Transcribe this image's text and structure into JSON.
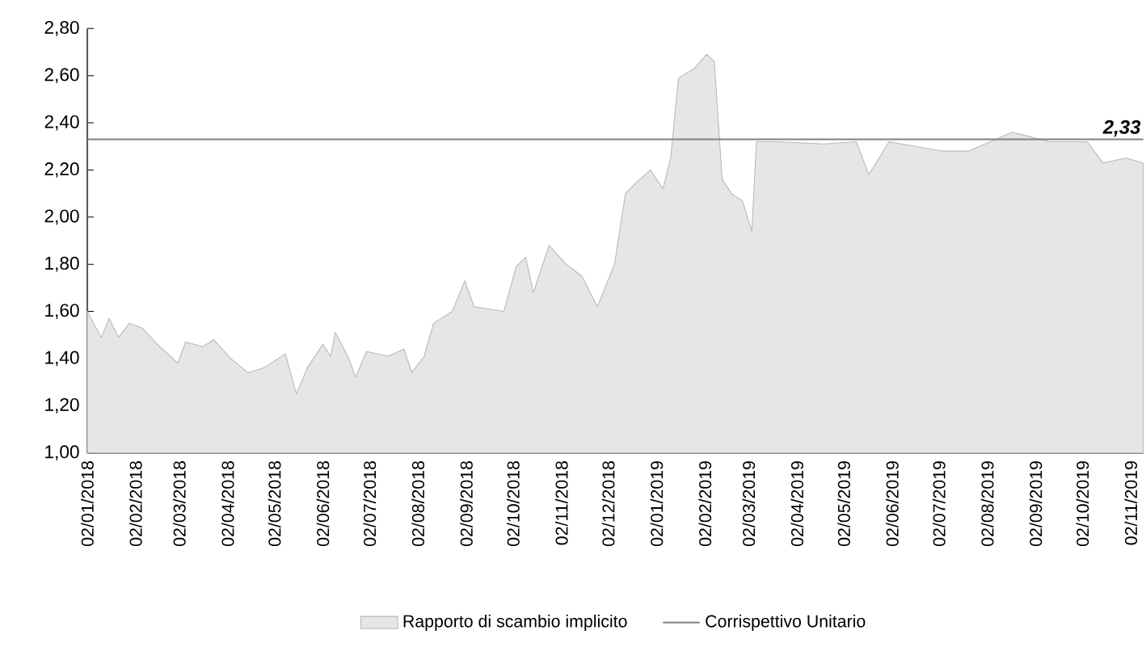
{
  "chart_data": {
    "type": "area",
    "legend": "bottom",
    "xlim": [
      "2018-01-02",
      "2019-11-10"
    ],
    "xticks": [
      {
        "value": "2018-01-02",
        "label": "02/01/2018"
      },
      {
        "value": "2018-02-02",
        "label": "02/02/2018"
      },
      {
        "value": "2018-03-02",
        "label": "02/03/2018"
      },
      {
        "value": "2018-04-02",
        "label": "02/04/2018"
      },
      {
        "value": "2018-05-02",
        "label": "02/05/2018"
      },
      {
        "value": "2018-06-02",
        "label": "02/06/2018"
      },
      {
        "value": "2018-07-02",
        "label": "02/07/2018"
      },
      {
        "value": "2018-08-02",
        "label": "02/08/2018"
      },
      {
        "value": "2018-09-02",
        "label": "02/09/2018"
      },
      {
        "value": "2018-10-02",
        "label": "02/10/2018"
      },
      {
        "value": "2018-11-02",
        "label": "02/11/2018"
      },
      {
        "value": "2018-12-02",
        "label": "02/12/2018"
      },
      {
        "value": "2019-01-02",
        "label": "02/01/2019"
      },
      {
        "value": "2019-02-02",
        "label": "02/02/2019"
      },
      {
        "value": "2019-03-02",
        "label": "02/03/2019"
      },
      {
        "value": "2019-04-02",
        "label": "02/04/2019"
      },
      {
        "value": "2019-05-02",
        "label": "02/05/2019"
      },
      {
        "value": "2019-06-02",
        "label": "02/06/2019"
      },
      {
        "value": "2019-07-02",
        "label": "02/07/2019"
      },
      {
        "value": "2019-08-02",
        "label": "02/08/2019"
      },
      {
        "value": "2019-09-02",
        "label": "02/09/2019"
      },
      {
        "value": "2019-10-02",
        "label": "02/10/2019"
      },
      {
        "value": "2019-11-02",
        "label": "02/11/2019"
      }
    ],
    "ylim": [
      1.0,
      2.8
    ],
    "yticks": [
      {
        "value": 1.0,
        "label": "1,00"
      },
      {
        "value": 1.2,
        "label": "1,20"
      },
      {
        "value": 1.4,
        "label": "1,40"
      },
      {
        "value": 1.6,
        "label": "1,60"
      },
      {
        "value": 1.8,
        "label": "1,80"
      },
      {
        "value": 2.0,
        "label": "2,00"
      },
      {
        "value": 2.2,
        "label": "2,20"
      },
      {
        "value": 2.4,
        "label": "2,40"
      },
      {
        "value": 2.6,
        "label": "2,60"
      },
      {
        "value": 2.8,
        "label": "2,80"
      }
    ],
    "series": [
      {
        "name": "Rapporto di scambio implicito",
        "color": "#e6e6e6",
        "x": [
          "2018-01-02",
          "2018-01-06",
          "2018-01-11",
          "2018-01-16",
          "2018-01-22",
          "2018-01-29",
          "2018-02-06",
          "2018-02-16",
          "2018-03-01",
          "2018-03-06",
          "2018-03-17",
          "2018-03-24",
          "2018-04-04",
          "2018-04-15",
          "2018-04-25",
          "2018-05-09",
          "2018-05-16",
          "2018-05-23",
          "2018-06-02",
          "2018-06-07",
          "2018-06-10",
          "2018-06-18",
          "2018-06-23",
          "2018-06-30",
          "2018-07-14",
          "2018-07-24",
          "2018-07-29",
          "2018-08-06",
          "2018-08-12",
          "2018-08-24",
          "2018-09-01",
          "2018-09-07",
          "2018-09-26",
          "2018-10-04",
          "2018-10-10",
          "2018-10-15",
          "2018-10-25",
          "2018-11-05",
          "2018-11-15",
          "2018-11-25",
          "2018-12-06",
          "2018-12-13",
          "2018-12-19",
          "2018-12-29",
          "2019-01-06",
          "2019-01-11",
          "2019-01-16",
          "2019-01-26",
          "2019-02-03",
          "2019-02-08",
          "2019-02-13",
          "2019-02-19",
          "2019-02-26",
          "2019-03-04",
          "2019-03-07",
          "2019-03-22",
          "2019-04-19",
          "2019-05-10",
          "2019-05-18",
          "2019-05-31",
          "2019-07-04",
          "2019-07-21",
          "2019-08-18",
          "2019-09-11",
          "2019-10-05",
          "2019-10-15",
          "2019-10-30",
          "2019-11-10"
        ],
        "values": [
          1.6,
          1.55,
          1.49,
          1.57,
          1.49,
          1.55,
          1.53,
          1.46,
          1.38,
          1.47,
          1.45,
          1.48,
          1.4,
          1.34,
          1.36,
          1.42,
          1.25,
          1.36,
          1.46,
          1.41,
          1.51,
          1.41,
          1.32,
          1.43,
          1.41,
          1.44,
          1.34,
          1.41,
          1.55,
          1.6,
          1.73,
          1.62,
          1.6,
          1.79,
          1.83,
          1.68,
          1.88,
          1.8,
          1.75,
          1.62,
          1.8,
          2.1,
          2.14,
          2.2,
          2.12,
          2.25,
          2.59,
          2.63,
          2.69,
          2.66,
          2.16,
          2.1,
          2.07,
          1.94,
          2.32,
          2.32,
          2.31,
          2.32,
          2.18,
          2.32,
          2.28,
          2.28,
          2.36,
          2.32,
          2.32,
          2.23,
          2.25,
          2.23
        ]
      },
      {
        "name": "Corrispettivo Unitario",
        "type": "line",
        "color": "#808080",
        "x": [
          "2018-01-02",
          "2019-11-10"
        ],
        "values": [
          2.33,
          2.33
        ],
        "value_labels": [
          null,
          "2,33"
        ]
      }
    ]
  }
}
